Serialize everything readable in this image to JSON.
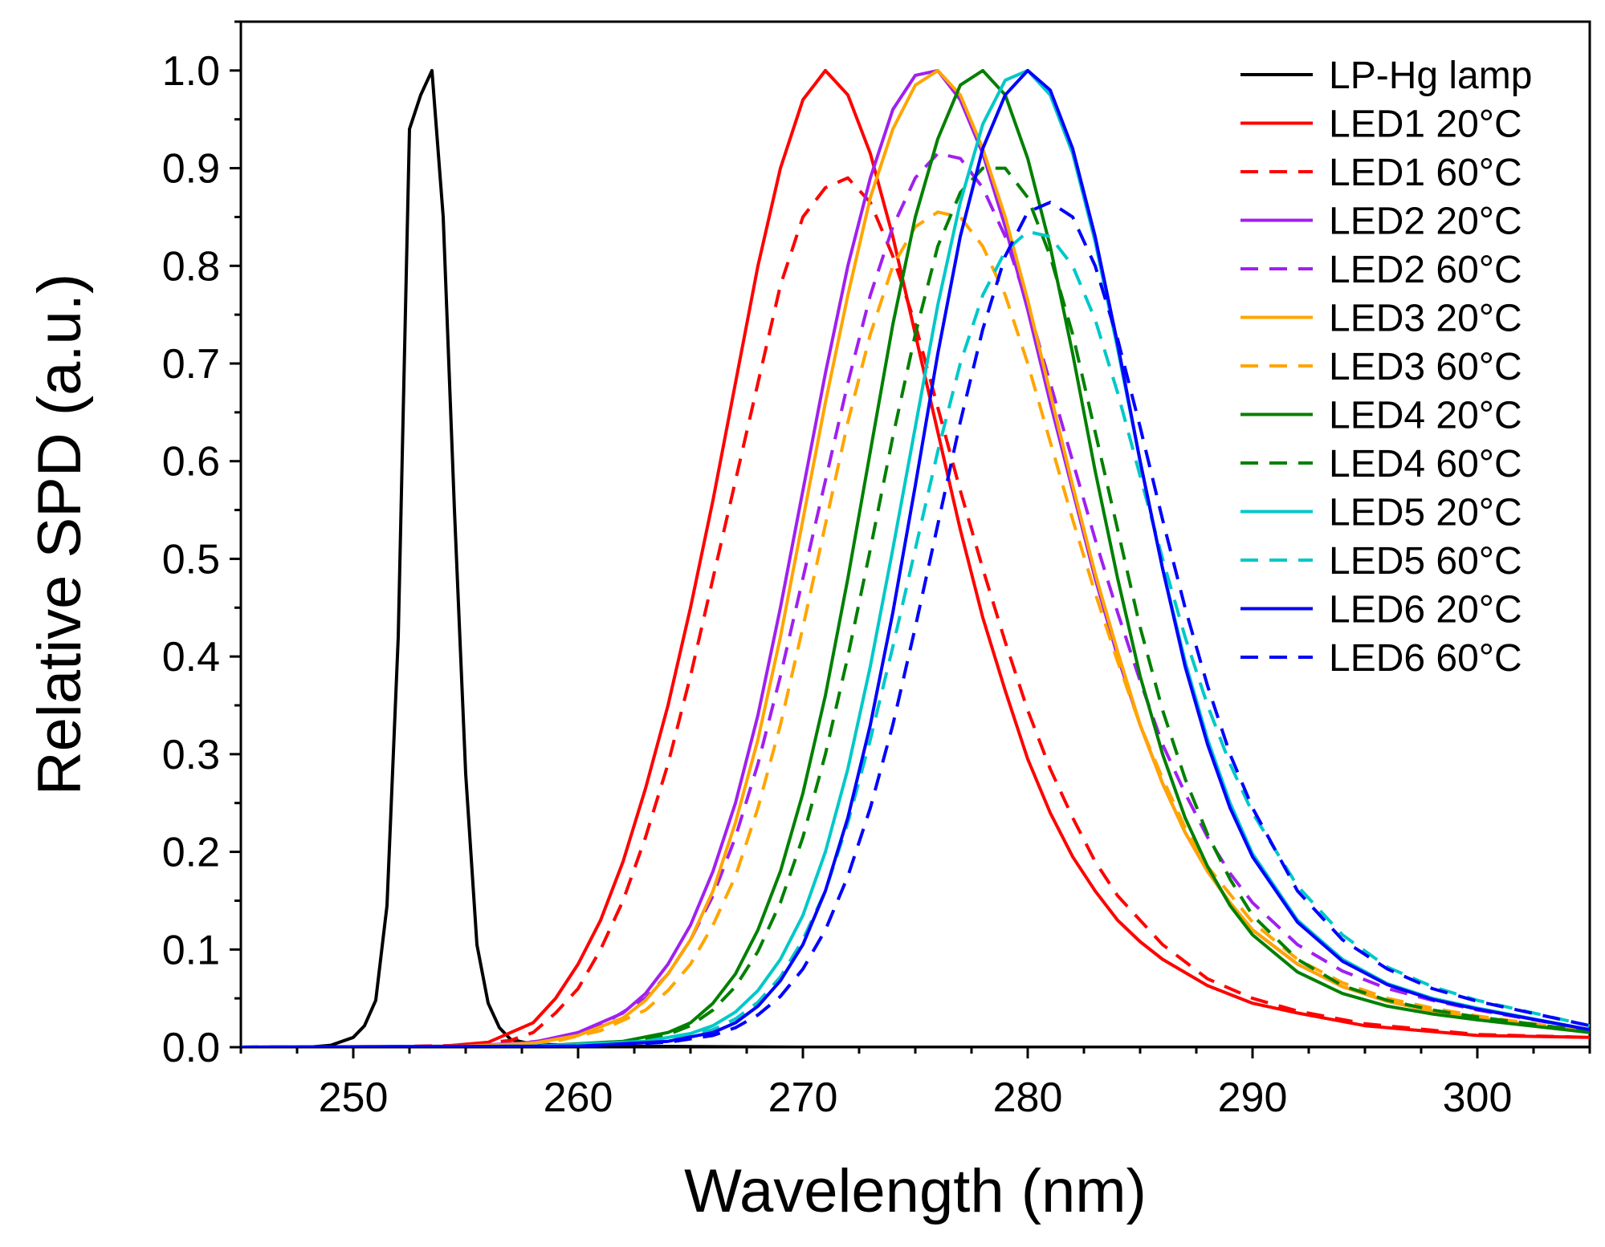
{
  "chart_data": {
    "type": "line",
    "title": "",
    "xlabel": "Wavelength (nm)",
    "ylabel": "Relative SPD (a.u.)",
    "xlim": [
      245,
      305
    ],
    "ylim": [
      0,
      1.05
    ],
    "xticks": [
      250,
      260,
      270,
      280,
      290,
      300
    ],
    "xtick_labels": [
      "250",
      "260",
      "270",
      "280",
      "290",
      "300"
    ],
    "yticks": [
      0.0,
      0.1,
      0.2,
      0.3,
      0.4,
      0.5,
      0.6,
      0.7,
      0.8,
      0.9,
      1.0
    ],
    "ytick_labels": [
      "0.0",
      "0.1",
      "0.2",
      "0.3",
      "0.4",
      "0.5",
      "0.6",
      "0.7",
      "0.8",
      "0.9",
      "1.0"
    ],
    "grid": false,
    "legend_position": "top-right",
    "series": [
      {
        "name": "LP-Hg lamp",
        "color": "#000000",
        "dashed": false,
        "x": [
          245,
          248,
          249,
          250,
          250.5,
          251,
          251.5,
          252,
          252.5,
          253,
          253.5,
          254,
          254.5,
          255,
          255.5,
          256,
          256.5,
          257,
          258,
          262,
          270,
          280,
          290,
          300,
          305
        ],
        "y": [
          0,
          0,
          0.002,
          0.01,
          0.022,
          0.048,
          0.145,
          0.42,
          0.94,
          0.975,
          1.0,
          0.85,
          0.55,
          0.28,
          0.105,
          0.045,
          0.02,
          0.008,
          0.003,
          0.001,
          0,
          0,
          0,
          0,
          0
        ]
      },
      {
        "name": "LED1 20°C",
        "color": "#ff0000",
        "dashed": false,
        "x": [
          245,
          250,
          254,
          256,
          258,
          259,
          260,
          261,
          262,
          263,
          264,
          265,
          266,
          267,
          268,
          269,
          270,
          271,
          272,
          273,
          274,
          275,
          276,
          277,
          278,
          279,
          280,
          281,
          282,
          283,
          284,
          285,
          286,
          288,
          290,
          292,
          295,
          300,
          305
        ],
        "y": [
          0,
          0,
          0.001,
          0.005,
          0.025,
          0.05,
          0.085,
          0.13,
          0.19,
          0.265,
          0.35,
          0.45,
          0.56,
          0.68,
          0.8,
          0.9,
          0.97,
          1.0,
          0.975,
          0.915,
          0.83,
          0.73,
          0.63,
          0.53,
          0.44,
          0.365,
          0.295,
          0.24,
          0.195,
          0.16,
          0.13,
          0.108,
          0.09,
          0.063,
          0.045,
          0.035,
          0.022,
          0.012,
          0.01
        ]
      },
      {
        "name": "LED1 60°C",
        "color": "#ff0000",
        "dashed": true,
        "x": [
          245,
          250,
          255,
          257,
          258,
          259,
          260,
          261,
          262,
          263,
          264,
          265,
          266,
          267,
          268,
          269,
          270,
          271,
          272,
          273,
          274,
          275,
          276,
          277,
          278,
          279,
          280,
          281,
          282,
          283,
          284,
          285,
          286,
          288,
          290,
          292,
          295,
          300,
          305
        ],
        "y": [
          0,
          0,
          0.002,
          0.007,
          0.015,
          0.035,
          0.06,
          0.1,
          0.15,
          0.215,
          0.29,
          0.38,
          0.48,
          0.58,
          0.68,
          0.78,
          0.85,
          0.88,
          0.89,
          0.865,
          0.81,
          0.74,
          0.655,
          0.57,
          0.49,
          0.415,
          0.345,
          0.285,
          0.235,
          0.19,
          0.155,
          0.13,
          0.105,
          0.07,
          0.05,
          0.037,
          0.024,
          0.013,
          0.01
        ]
      },
      {
        "name": "LED2 20°C",
        "color": "#a020f0",
        "dashed": false,
        "x": [
          245,
          255,
          258,
          260,
          262,
          263,
          264,
          265,
          266,
          267,
          268,
          269,
          270,
          271,
          272,
          273,
          274,
          275,
          276,
          277,
          278,
          279,
          280,
          281,
          282,
          283,
          284,
          285,
          286,
          287,
          288,
          289,
          290,
          292,
          294,
          296,
          298,
          300,
          305
        ],
        "y": [
          0,
          0.001,
          0.005,
          0.015,
          0.035,
          0.055,
          0.085,
          0.125,
          0.18,
          0.25,
          0.34,
          0.45,
          0.57,
          0.69,
          0.8,
          0.89,
          0.96,
          0.995,
          1.0,
          0.97,
          0.915,
          0.84,
          0.755,
          0.66,
          0.57,
          0.48,
          0.4,
          0.33,
          0.27,
          0.22,
          0.18,
          0.148,
          0.12,
          0.085,
          0.062,
          0.047,
          0.037,
          0.03,
          0.015
        ]
      },
      {
        "name": "LED2 60°C",
        "color": "#a020f0",
        "dashed": true,
        "x": [
          245,
          256,
          259,
          261,
          263,
          264,
          265,
          266,
          267,
          268,
          269,
          270,
          271,
          272,
          273,
          274,
          275,
          276,
          277,
          278,
          279,
          280,
          281,
          282,
          283,
          284,
          285,
          286,
          287,
          288,
          289,
          290,
          292,
          294,
          296,
          298,
          300,
          305
        ],
        "y": [
          0,
          0.001,
          0.008,
          0.022,
          0.05,
          0.075,
          0.11,
          0.155,
          0.215,
          0.29,
          0.38,
          0.48,
          0.58,
          0.68,
          0.77,
          0.84,
          0.89,
          0.915,
          0.91,
          0.88,
          0.83,
          0.76,
          0.68,
          0.6,
          0.52,
          0.445,
          0.375,
          0.31,
          0.26,
          0.215,
          0.178,
          0.148,
          0.105,
          0.078,
          0.06,
          0.048,
          0.038,
          0.018
        ]
      },
      {
        "name": "LED3 20°C",
        "color": "#ffa500",
        "dashed": false,
        "x": [
          245,
          255,
          258,
          260,
          262,
          263,
          264,
          265,
          266,
          267,
          268,
          269,
          270,
          271,
          272,
          273,
          274,
          275,
          276,
          277,
          278,
          279,
          280,
          281,
          282,
          283,
          284,
          285,
          286,
          287,
          288,
          289,
          290,
          292,
          294,
          296,
          298,
          300,
          305
        ],
        "y": [
          0,
          0.001,
          0.004,
          0.012,
          0.03,
          0.048,
          0.075,
          0.11,
          0.16,
          0.23,
          0.315,
          0.42,
          0.54,
          0.66,
          0.77,
          0.87,
          0.94,
          0.985,
          1.0,
          0.975,
          0.92,
          0.85,
          0.765,
          0.67,
          0.575,
          0.485,
          0.405,
          0.33,
          0.27,
          0.22,
          0.18,
          0.148,
          0.12,
          0.085,
          0.062,
          0.047,
          0.037,
          0.03,
          0.015
        ]
      },
      {
        "name": "LED3 60°C",
        "color": "#ffa500",
        "dashed": true,
        "x": [
          245,
          256,
          259,
          261,
          263,
          264,
          265,
          266,
          267,
          268,
          269,
          270,
          271,
          272,
          273,
          274,
          275,
          276,
          277,
          278,
          279,
          280,
          281,
          282,
          283,
          284,
          285,
          286,
          287,
          288,
          290,
          292,
          294,
          296,
          298,
          300,
          305
        ],
        "y": [
          0,
          0.001,
          0.006,
          0.017,
          0.038,
          0.058,
          0.085,
          0.125,
          0.175,
          0.245,
          0.33,
          0.43,
          0.535,
          0.64,
          0.73,
          0.8,
          0.84,
          0.855,
          0.85,
          0.82,
          0.77,
          0.7,
          0.62,
          0.54,
          0.465,
          0.395,
          0.33,
          0.275,
          0.225,
          0.185,
          0.128,
          0.09,
          0.066,
          0.05,
          0.04,
          0.032,
          0.016
        ]
      },
      {
        "name": "LED4 20°C",
        "color": "#008000",
        "dashed": false,
        "x": [
          245,
          258,
          262,
          264,
          265,
          266,
          267,
          268,
          269,
          270,
          271,
          272,
          273,
          274,
          275,
          276,
          277,
          278,
          279,
          280,
          281,
          282,
          283,
          284,
          285,
          286,
          287,
          288,
          289,
          290,
          292,
          294,
          296,
          298,
          300,
          305
        ],
        "y": [
          0,
          0.001,
          0.006,
          0.015,
          0.025,
          0.045,
          0.075,
          0.12,
          0.18,
          0.26,
          0.36,
          0.48,
          0.61,
          0.74,
          0.85,
          0.93,
          0.985,
          1.0,
          0.975,
          0.91,
          0.82,
          0.71,
          0.59,
          0.48,
          0.38,
          0.3,
          0.235,
          0.185,
          0.145,
          0.115,
          0.077,
          0.055,
          0.042,
          0.034,
          0.028,
          0.015
        ]
      },
      {
        "name": "LED4 60°C",
        "color": "#008000",
        "dashed": true,
        "x": [
          245,
          258,
          262,
          264,
          265,
          266,
          267,
          268,
          269,
          270,
          271,
          272,
          273,
          274,
          275,
          276,
          277,
          278,
          279,
          280,
          281,
          282,
          283,
          284,
          285,
          286,
          287,
          288,
          289,
          290,
          292,
          294,
          296,
          298,
          300,
          305
        ],
        "y": [
          0,
          0.001,
          0.005,
          0.013,
          0.022,
          0.038,
          0.062,
          0.098,
          0.148,
          0.215,
          0.3,
          0.4,
          0.51,
          0.625,
          0.73,
          0.82,
          0.875,
          0.9,
          0.9,
          0.87,
          0.81,
          0.73,
          0.63,
          0.53,
          0.43,
          0.345,
          0.275,
          0.218,
          0.172,
          0.135,
          0.09,
          0.063,
          0.048,
          0.038,
          0.031,
          0.016
        ]
      },
      {
        "name": "LED5 20°C",
        "color": "#00c8c8",
        "dashed": false,
        "x": [
          245,
          258,
          263,
          265,
          266,
          267,
          268,
          269,
          270,
          271,
          272,
          273,
          274,
          275,
          276,
          277,
          278,
          279,
          280,
          281,
          282,
          283,
          284,
          285,
          286,
          287,
          288,
          289,
          290,
          292,
          294,
          296,
          298,
          300,
          305
        ],
        "y": [
          0,
          0.001,
          0.006,
          0.014,
          0.022,
          0.036,
          0.058,
          0.09,
          0.135,
          0.2,
          0.285,
          0.39,
          0.51,
          0.635,
          0.76,
          0.865,
          0.945,
          0.99,
          1.0,
          0.975,
          0.915,
          0.825,
          0.715,
          0.6,
          0.49,
          0.395,
          0.315,
          0.25,
          0.198,
          0.13,
          0.09,
          0.065,
          0.05,
          0.04,
          0.018
        ]
      },
      {
        "name": "LED5 60°C",
        "color": "#00c8c8",
        "dashed": true,
        "x": [
          245,
          258,
          263,
          265,
          266,
          267,
          268,
          269,
          270,
          271,
          272,
          273,
          274,
          275,
          276,
          277,
          278,
          279,
          280,
          281,
          282,
          283,
          284,
          285,
          286,
          287,
          288,
          289,
          290,
          292,
          294,
          296,
          298,
          300,
          305
        ],
        "y": [
          0,
          0.001,
          0.005,
          0.012,
          0.018,
          0.029,
          0.046,
          0.072,
          0.11,
          0.16,
          0.23,
          0.315,
          0.41,
          0.51,
          0.61,
          0.7,
          0.77,
          0.815,
          0.835,
          0.83,
          0.8,
          0.745,
          0.67,
          0.585,
          0.5,
          0.42,
          0.35,
          0.29,
          0.24,
          0.165,
          0.115,
          0.082,
          0.062,
          0.048,
          0.022
        ]
      },
      {
        "name": "LED6 20°C",
        "color": "#0000ff",
        "dashed": false,
        "x": [
          245,
          260,
          264,
          266,
          267,
          268,
          269,
          270,
          271,
          272,
          273,
          274,
          275,
          276,
          277,
          278,
          279,
          280,
          281,
          282,
          283,
          284,
          285,
          286,
          287,
          288,
          289,
          290,
          292,
          294,
          296,
          298,
          300,
          305
        ],
        "y": [
          0,
          0.001,
          0.006,
          0.015,
          0.025,
          0.042,
          0.068,
          0.105,
          0.16,
          0.235,
          0.33,
          0.445,
          0.575,
          0.71,
          0.83,
          0.92,
          0.975,
          1.0,
          0.98,
          0.92,
          0.83,
          0.72,
          0.6,
          0.49,
          0.39,
          0.31,
          0.245,
          0.195,
          0.128,
          0.088,
          0.064,
          0.049,
          0.039,
          0.018
        ]
      },
      {
        "name": "LED6 60°C",
        "color": "#0000ff",
        "dashed": true,
        "x": [
          245,
          260,
          264,
          266,
          267,
          268,
          269,
          270,
          271,
          272,
          273,
          274,
          275,
          276,
          277,
          278,
          279,
          280,
          281,
          282,
          283,
          284,
          285,
          286,
          287,
          288,
          289,
          290,
          292,
          294,
          296,
          298,
          300,
          305
        ],
        "y": [
          0,
          0.001,
          0.005,
          0.012,
          0.02,
          0.033,
          0.052,
          0.08,
          0.12,
          0.175,
          0.245,
          0.33,
          0.43,
          0.535,
          0.64,
          0.735,
          0.81,
          0.855,
          0.865,
          0.85,
          0.8,
          0.725,
          0.635,
          0.54,
          0.45,
          0.37,
          0.3,
          0.245,
          0.16,
          0.11,
          0.08,
          0.06,
          0.047,
          0.022
        ]
      }
    ]
  }
}
